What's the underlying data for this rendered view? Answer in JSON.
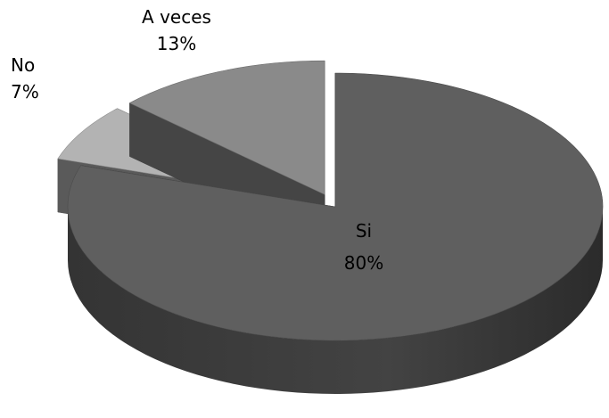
{
  "chart_data": {
    "type": "pie",
    "style": "3d-exploded",
    "slices": [
      {
        "label": "Si",
        "value": 80,
        "percent_label": "80%",
        "color": "#5f5f5f"
      },
      {
        "label": "No",
        "value": 7,
        "percent_label": "7%",
        "color": "#b3b3b3"
      },
      {
        "label": "A veces",
        "value": 13,
        "percent_label": "13%",
        "color": "#8a8a8a"
      }
    ],
    "title": "",
    "legend": "none"
  }
}
